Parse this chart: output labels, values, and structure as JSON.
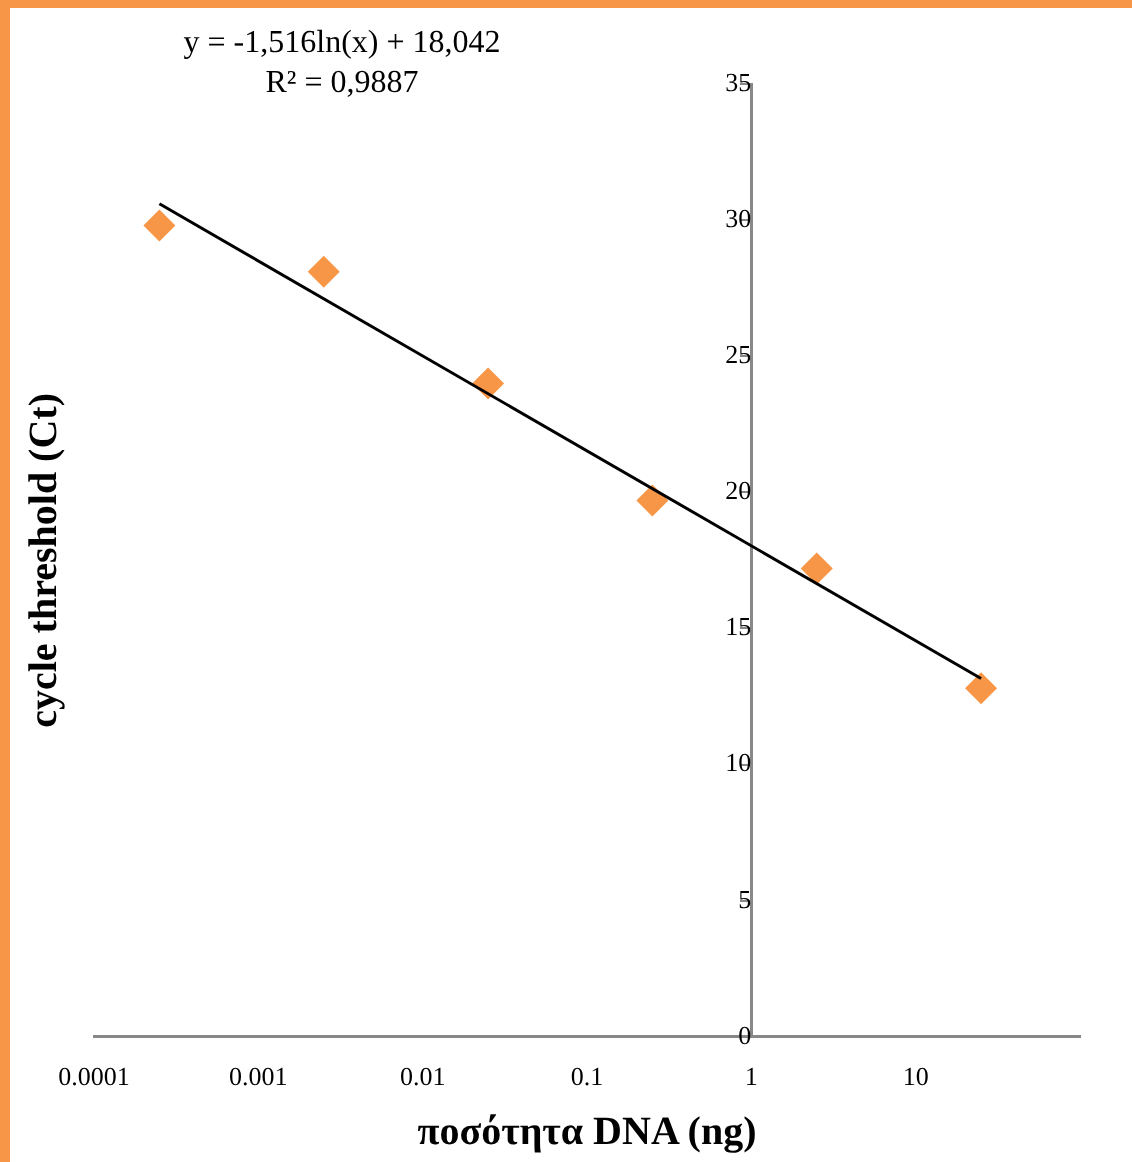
{
  "chart_data": {
    "type": "scatter",
    "xlabel": "ποσότητα DNA (ng)",
    "ylabel": "cycle threshold (Ct)",
    "annotations": [
      "y = -1,516ln(x) + 18,042",
      "R² = 0,9887"
    ],
    "log": "x",
    "xlim": [
      0.0001,
      100
    ],
    "xticks": [
      0.0001,
      0.001,
      0.01,
      0.1,
      1,
      10
    ],
    "ylim": [
      0,
      35
    ],
    "yticks": [
      0,
      5,
      10,
      15,
      20,
      25,
      30,
      35
    ],
    "grid": false,
    "series": [
      {
        "marker": "diamond",
        "color": "#f79646",
        "x": [
          0.00025,
          0.0025,
          0.025,
          0.25,
          2.5,
          25
        ],
        "values": [
          29.8,
          28.1,
          24.0,
          19.7,
          17.2,
          12.8
        ]
      },
      {
        "type": "line",
        "marker": "none",
        "color": "#000000",
        "x": [
          0.00025,
          25
        ],
        "values": [
          30.6,
          13.16
        ]
      }
    ]
  }
}
